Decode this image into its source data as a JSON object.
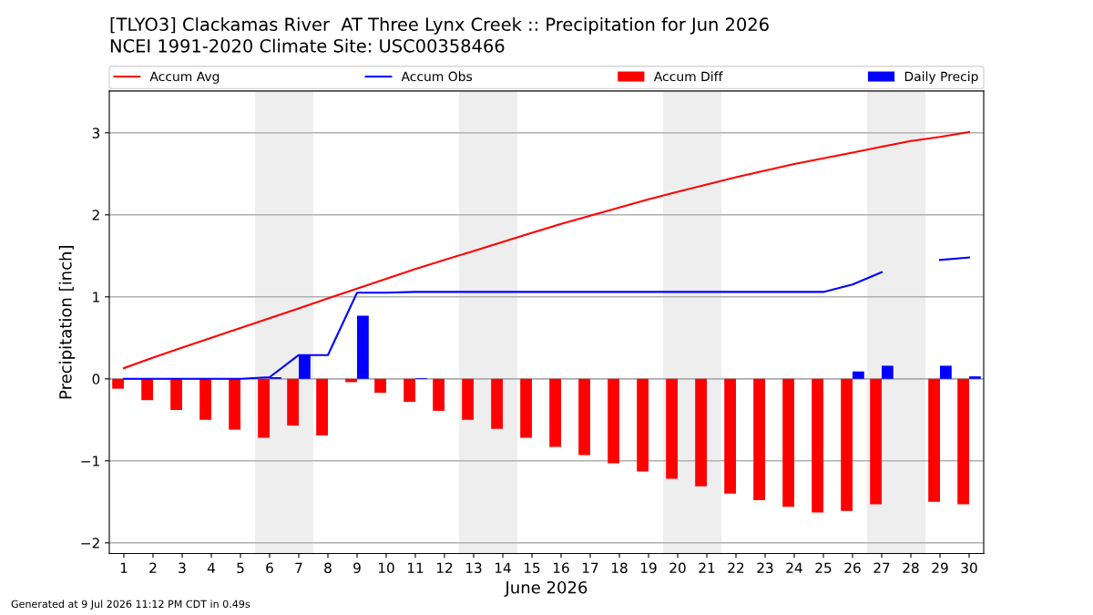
{
  "chart_data": {
    "type": "line",
    "title": "[TLYO3] Clackamas River  AT Three Lynx Creek :: Precipitation for Jun 2026",
    "subtitle": "NCEI 1991-2020 Climate Site: USC00358466",
    "xlabel": "June 2026",
    "ylabel": "Precipitation [inch]",
    "x": [
      1,
      2,
      3,
      4,
      5,
      6,
      7,
      8,
      9,
      10,
      11,
      12,
      13,
      14,
      15,
      16,
      17,
      18,
      19,
      20,
      21,
      22,
      23,
      24,
      25,
      26,
      27,
      28,
      29,
      30
    ],
    "series": [
      {
        "name": "Accum Avg",
        "color": "#ff0000",
        "values": [
          0.13,
          0.26,
          0.38,
          0.5,
          0.62,
          0.74,
          0.86,
          0.98,
          1.1,
          1.22,
          1.34,
          1.45,
          1.56,
          1.67,
          1.78,
          1.89,
          1.99,
          2.09,
          2.19,
          2.28,
          2.37,
          2.46,
          2.54,
          2.62,
          2.69,
          2.76,
          2.83,
          2.9,
          2.95,
          3.01
        ]
      },
      {
        "name": "Accum Obs",
        "color": "#0000ff",
        "values": [
          0,
          0,
          0,
          0,
          0,
          0.02,
          0.29,
          0.29,
          1.05,
          1.05,
          1.06,
          1.06,
          1.06,
          1.06,
          1.06,
          1.06,
          1.06,
          1.06,
          1.06,
          1.06,
          1.06,
          1.06,
          1.06,
          1.06,
          1.06,
          1.15,
          1.3,
          null,
          1.45,
          1.48
        ]
      },
      {
        "name": "Accum Diff",
        "type": "bar",
        "color": "#ff0000",
        "values": [
          -0.12,
          -0.26,
          -0.38,
          -0.5,
          -0.62,
          -0.72,
          -0.57,
          -0.69,
          -0.04,
          -0.17,
          -0.28,
          -0.39,
          -0.5,
          -0.61,
          -0.72,
          -0.83,
          -0.93,
          -1.03,
          -1.13,
          -1.22,
          -1.31,
          -1.4,
          -1.48,
          -1.56,
          -1.63,
          -1.61,
          -1.53,
          null,
          -1.5,
          -1.53
        ]
      },
      {
        "name": "Daily Precip",
        "type": "bar",
        "color": "#0000ff",
        "values": [
          0,
          0,
          0,
          0,
          0,
          0.02,
          0.29,
          0,
          0.77,
          0,
          0.01,
          0,
          0,
          0,
          0,
          0,
          0,
          0,
          0,
          0,
          0,
          0,
          0,
          0,
          0,
          0.09,
          0.16,
          null,
          0.16,
          0.03
        ]
      }
    ],
    "bands": [
      {
        "axis": "x",
        "from": 5.5,
        "to": 7.5,
        "color": "#eeeeee"
      },
      {
        "axis": "x",
        "from": 12.5,
        "to": 14.5,
        "color": "#eeeeee"
      },
      {
        "axis": "x",
        "from": 19.5,
        "to": 21.5,
        "color": "#eeeeee"
      },
      {
        "axis": "x",
        "from": 26.5,
        "to": 28.5,
        "color": "#eeeeee"
      }
    ],
    "xlim": [
      0.5,
      30.5
    ],
    "xticks": [
      1,
      2,
      3,
      4,
      5,
      6,
      7,
      8,
      9,
      10,
      11,
      12,
      13,
      14,
      15,
      16,
      17,
      18,
      19,
      20,
      21,
      22,
      23,
      24,
      25,
      26,
      27,
      28,
      29,
      30
    ],
    "ylim": [
      -2.13,
      3.51
    ],
    "yticks": [
      {
        "value": -2,
        "label": "−2"
      },
      {
        "value": -1,
        "label": "−1"
      },
      0,
      1,
      2,
      3
    ],
    "grid": "y",
    "legend": "top",
    "annotations": [
      "Generated at 9 Jul 2026 11:12 PM CDT in 0.49s"
    ]
  }
}
